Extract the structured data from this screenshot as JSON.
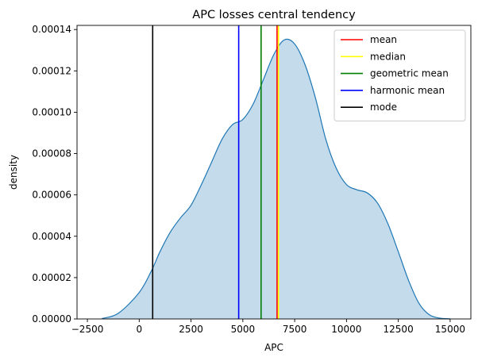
{
  "chart_data": {
    "type": "area",
    "title": "APC losses central tendency",
    "xlabel": "APC",
    "ylabel": "density",
    "xlim": [
      -3000,
      16000
    ],
    "ylim": [
      0,
      0.000142
    ],
    "grid": false,
    "legend_placement": "top-right",
    "x_ticks": [
      -2500,
      0,
      2500,
      5000,
      7500,
      10000,
      12500,
      15000
    ],
    "x_tick_labels": [
      "−2500",
      "0",
      "2500",
      "5000",
      "7500",
      "10000",
      "12500",
      "15000"
    ],
    "y_ticks": [
      0,
      2e-05,
      4e-05,
      6e-05,
      8e-05,
      0.0001,
      0.00012,
      0.00014
    ],
    "y_tick_labels": [
      "0.00000",
      "0.00002",
      "0.00004",
      "0.00006",
      "0.00008",
      "0.00010",
      "0.00012",
      "0.00014"
    ],
    "density": {
      "color": "#1f77b4",
      "fill_color": "#c4dbec",
      "x": [
        -1800,
        -1000,
        0,
        600,
        1000,
        1500,
        2000,
        2500,
        3000,
        3500,
        4000,
        4500,
        5000,
        5500,
        6000,
        6500,
        7000,
        7500,
        8000,
        8500,
        9000,
        9500,
        10000,
        10500,
        11000,
        11500,
        12000,
        12500,
        13000,
        13500,
        14000,
        14500,
        15000
      ],
      "y": [
        2e-07,
        2.8e-06,
        1.28e-05,
        2.35e-05,
        3.25e-05,
        4.2e-05,
        4.9e-05,
        5.5e-05,
        6.5e-05,
        7.6e-05,
        8.7e-05,
        9.4e-05,
        9.65e-05,
        0.000104,
        0.000116,
        0.000128,
        0.000135,
        0.000133,
        0.000123,
        0.000107,
        8.7e-05,
        7.3e-05,
        6.5e-05,
        6.25e-05,
        6.1e-05,
        5.6e-05,
        4.6e-05,
        3.25e-05,
        1.85e-05,
        7.5e-06,
        2e-06,
        4e-07,
        5e-08
      ]
    },
    "central_lines": [
      {
        "name": "mean",
        "x": 6650,
        "color": "#ff0000"
      },
      {
        "name": "median",
        "x": 6720,
        "color": "#ffff00"
      },
      {
        "name": "geometric mean",
        "x": 5880,
        "color": "#008000"
      },
      {
        "name": "harmonic mean",
        "x": 4800,
        "color": "#0000ff"
      },
      {
        "name": "mode",
        "x": 650,
        "color": "#000000"
      }
    ]
  }
}
